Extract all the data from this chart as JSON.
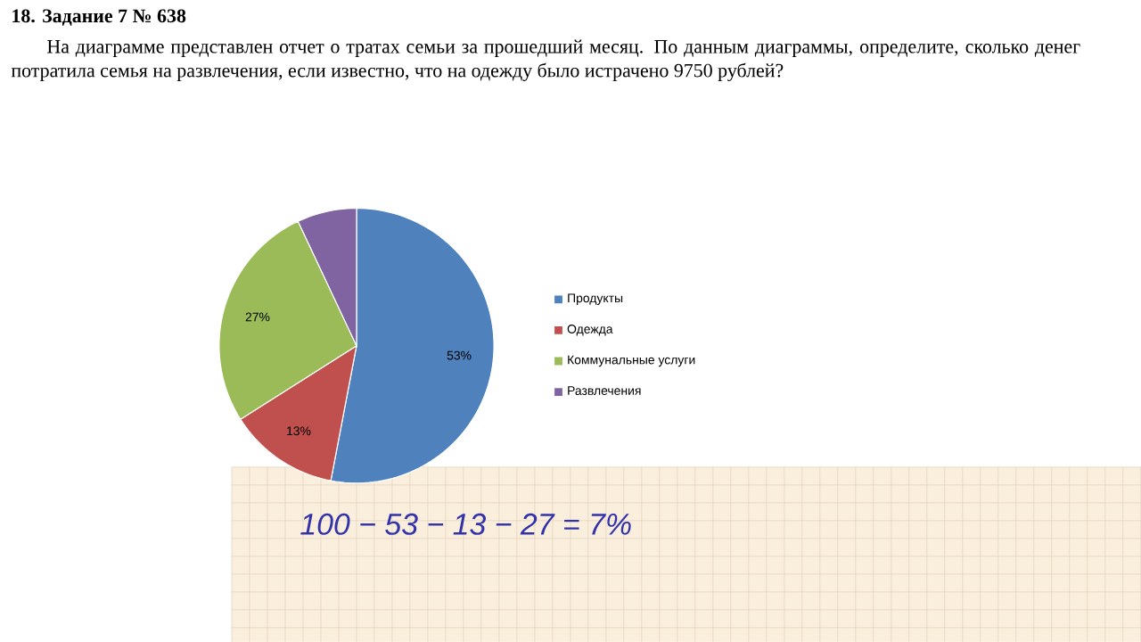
{
  "chart_data": {
    "type": "pie",
    "title": "18. Задание 7 № 638",
    "subtitle": "На диаграмме представлен отчет о тратах семьи за прошедший месяц. По данным диаграммы, определите, сколько денег потратила семья на развлечения, если известно, что на одежду было истрачено 9750 рублей?",
    "categories": [
      "Продукты",
      "Одежда",
      "Коммунальные услуги",
      "Развлечения"
    ],
    "values": [
      53,
      13,
      27,
      7
    ],
    "colors": [
      "#4f81bd",
      "#c0504d",
      "#9bbb59",
      "#8064a2"
    ],
    "value_labels": [
      "53%",
      "13%",
      "27%",
      null
    ],
    "legend": "right",
    "annotations": [
      "100 − 53 − 13 − 27 = 7%"
    ]
  }
}
